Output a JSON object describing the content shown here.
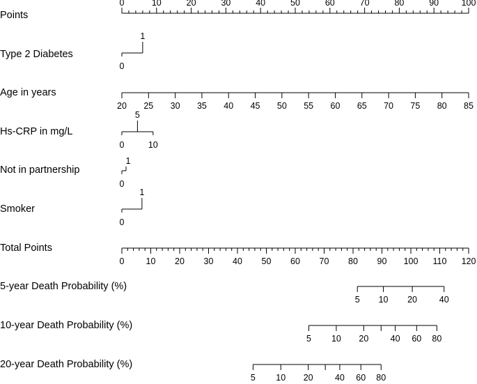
{
  "chart_data": {
    "type": "nomogram",
    "rows": [
      {
        "label": "Points",
        "axis": {
          "min": 0,
          "max": 100
        },
        "major_ticks": [
          0,
          10,
          20,
          30,
          40,
          50,
          60,
          70,
          80,
          90,
          100
        ],
        "minor_step": 2,
        "tick_labels": [
          {
            "value": 0,
            "text": "0"
          },
          {
            "value": 10,
            "text": "10"
          },
          {
            "value": 20,
            "text": "20"
          },
          {
            "value": 30,
            "text": "30"
          },
          {
            "value": 40,
            "text": "40"
          },
          {
            "value": 50,
            "text": "50"
          },
          {
            "value": 60,
            "text": "60"
          },
          {
            "value": 70,
            "text": "70"
          },
          {
            "value": 80,
            "text": "80"
          },
          {
            "value": 90,
            "text": "90"
          },
          {
            "value": 100,
            "text": "100"
          }
        ],
        "labels_side": "above"
      },
      {
        "label": "Type 2 Diabetes",
        "levels": [
          {
            "value": "0",
            "points": 0,
            "side": "below"
          },
          {
            "value": "1",
            "points": 6,
            "side": "above"
          }
        ]
      },
      {
        "label": "Age in years",
        "axis_values": [
          20,
          25,
          30,
          35,
          40,
          45,
          50,
          55,
          60,
          65,
          70,
          75,
          80,
          85
        ],
        "points_range": [
          0,
          100
        ],
        "labels_side": "below"
      },
      {
        "label": "Hs-CRP in mg/L",
        "levels": [
          {
            "value": "0",
            "points": 0,
            "side": "below"
          },
          {
            "value": "5",
            "points": 4.5,
            "side": "above"
          },
          {
            "value": "10",
            "points": 9,
            "side": "below"
          }
        ]
      },
      {
        "label": "Not in partnership",
        "levels": [
          {
            "value": "0",
            "points": 0,
            "side": "below"
          },
          {
            "value": "1",
            "points": 1.2,
            "side": "above"
          }
        ]
      },
      {
        "label": "Smoker",
        "levels": [
          {
            "value": "0",
            "points": 0,
            "side": "below"
          },
          {
            "value": "1",
            "points": 5.8,
            "side": "above"
          }
        ]
      },
      {
        "label": "Total Points",
        "axis": {
          "min": 0,
          "max": 120
        },
        "major_ticks": [
          0,
          10,
          20,
          30,
          40,
          50,
          60,
          70,
          80,
          90,
          100,
          110,
          120
        ],
        "minor_step": 2,
        "tick_labels": [
          {
            "value": 0,
            "text": "0"
          },
          {
            "value": 10,
            "text": "10"
          },
          {
            "value": 20,
            "text": "20"
          },
          {
            "value": 30,
            "text": "30"
          },
          {
            "value": 40,
            "text": "40"
          },
          {
            "value": 50,
            "text": "50"
          },
          {
            "value": 60,
            "text": "60"
          },
          {
            "value": 70,
            "text": "70"
          },
          {
            "value": 80,
            "text": "80"
          },
          {
            "value": 90,
            "text": "90"
          },
          {
            "value": 100,
            "text": "100"
          },
          {
            "value": 110,
            "text": "110"
          },
          {
            "value": 120,
            "text": "120"
          }
        ],
        "labels_side": "below"
      },
      {
        "label": "5-year Death Probability (%)",
        "scale": "total_points",
        "ticks": [
          {
            "total": 81.5,
            "text": "5"
          },
          {
            "total": 90.5,
            "text": "10"
          },
          {
            "total": 100.5,
            "text": "20"
          },
          {
            "total": 111.5,
            "text": "40"
          }
        ]
      },
      {
        "label": "10-year Death Probability (%)",
        "scale": "total_points",
        "ticks": [
          {
            "total": 64.7,
            "text": "5"
          },
          {
            "total": 74.2,
            "text": "10"
          },
          {
            "total": 83.7,
            "text": "20"
          },
          {
            "total": 89.7,
            "text": ""
          },
          {
            "total": 94.6,
            "text": "40"
          },
          {
            "total": 102,
            "text": "60"
          },
          {
            "total": 109,
            "text": "80"
          }
        ]
      },
      {
        "label": "20-year Death Probability (%)",
        "scale": "total_points",
        "ticks": [
          {
            "total": 45.4,
            "text": "5"
          },
          {
            "total": 55,
            "text": "10"
          },
          {
            "total": 64.5,
            "text": "20"
          },
          {
            "total": 70.4,
            "text": ""
          },
          {
            "total": 75.4,
            "text": "40"
          },
          {
            "total": 82.7,
            "text": "60"
          },
          {
            "total": 89.7,
            "text": "80"
          }
        ]
      }
    ]
  }
}
